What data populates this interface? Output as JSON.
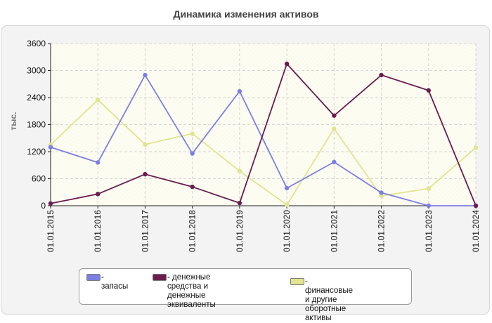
{
  "chart_data": {
    "type": "line",
    "title": "Динамика изменения активов",
    "ylabel": "тыс.",
    "xlabel": "",
    "ylim": [
      0,
      3600
    ],
    "yticks": [
      0,
      600,
      1200,
      1800,
      2400,
      3000,
      3600
    ],
    "categories": [
      "01.01.2015",
      "01.01.2016",
      "01.01.2017",
      "01.01.2018",
      "01.01.2019",
      "01.01.2020",
      "01.01.2021",
      "01.01.2022",
      "01.01.2023",
      "01.01.2024"
    ],
    "grid": true,
    "legend_position": "bottom",
    "series": [
      {
        "name": "- запасы",
        "color": "#7b7fe3",
        "values": [
          1300,
          960,
          2900,
          1160,
          2540,
          390,
          970,
          290,
          0,
          0
        ]
      },
      {
        "name": "- денежные средства и\nденежные эквиваленты",
        "color": "#6b1d4e",
        "values": [
          50,
          260,
          700,
          420,
          60,
          3150,
          2000,
          2900,
          2560,
          0
        ]
      },
      {
        "name": "- финансовые и другие\nоборотные активы",
        "color": "#e2e48e",
        "values": [
          1350,
          2350,
          1360,
          1600,
          770,
          20,
          1710,
          220,
          380,
          1290
        ]
      }
    ]
  }
}
